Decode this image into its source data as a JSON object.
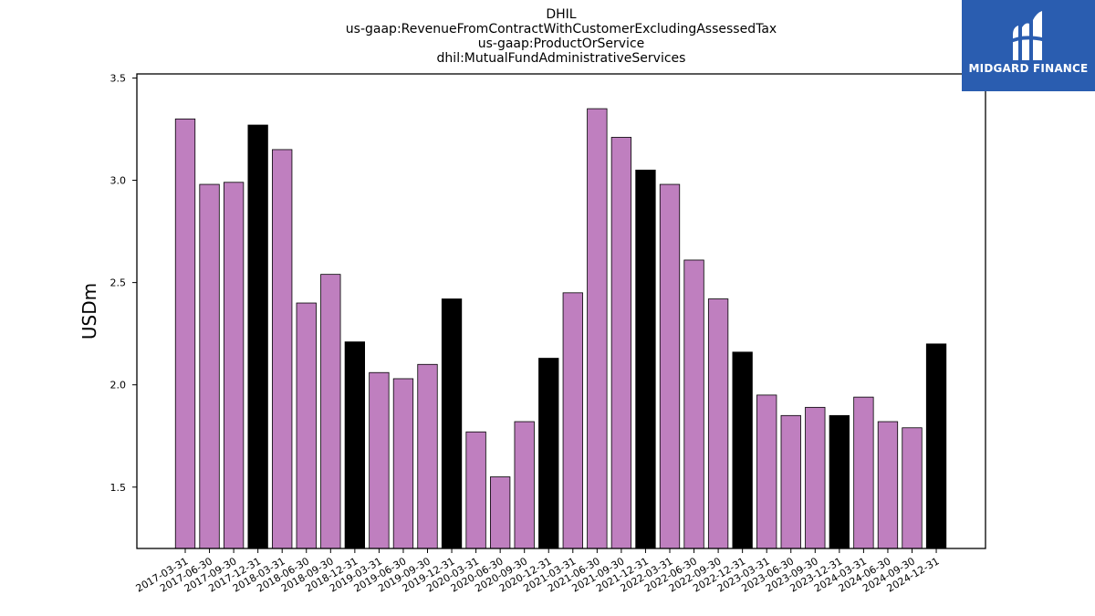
{
  "chart_data": {
    "type": "bar",
    "title_lines": [
      "DHIL",
      "us-gaap:RevenueFromContractWithCustomerExcludingAssessedTax",
      "us-gaap:ProductOrService",
      "dhil:MutualFundAdministrativeServices"
    ],
    "xlabel": "",
    "ylabel": "USDm",
    "ylim": [
      1.2,
      3.52
    ],
    "yticks": [
      1.5,
      2.0,
      2.5,
      3.0,
      3.5
    ],
    "ytick_labels": [
      "1.5",
      "2.0",
      "2.5",
      "3.0",
      "3.5"
    ],
    "grid": false,
    "colors": {
      "quarter": "#bf7fbf",
      "year_end": "#000000",
      "edge": "#000000"
    },
    "categories": [
      "2017-03-31",
      "2017-06-30",
      "2017-09-30",
      "2017-12-31",
      "2018-03-31",
      "2018-06-30",
      "2018-09-30",
      "2018-12-31",
      "2019-03-31",
      "2019-06-30",
      "2019-09-30",
      "2019-12-31",
      "2020-03-31",
      "2020-06-30",
      "2020-09-30",
      "2020-12-31",
      "2021-03-31",
      "2021-06-30",
      "2021-09-30",
      "2021-12-31",
      "2022-03-31",
      "2022-06-30",
      "2022-09-30",
      "2022-12-31",
      "2023-03-31",
      "2023-06-30",
      "2023-09-30",
      "2023-12-31",
      "2024-03-31",
      "2024-06-30",
      "2024-09-30",
      "2024-12-31"
    ],
    "values": [
      3.3,
      2.98,
      2.99,
      3.27,
      3.15,
      2.4,
      2.54,
      2.21,
      2.06,
      2.03,
      2.1,
      2.42,
      1.77,
      1.55,
      1.82,
      2.13,
      2.45,
      3.35,
      3.21,
      3.05,
      2.98,
      2.61,
      2.42,
      2.16,
      1.95,
      1.85,
      1.89,
      1.85,
      1.94,
      1.82,
      1.79,
      2.2
    ],
    "year_end": [
      false,
      false,
      false,
      true,
      false,
      false,
      false,
      true,
      false,
      false,
      false,
      true,
      false,
      false,
      false,
      true,
      false,
      false,
      false,
      true,
      false,
      false,
      false,
      true,
      false,
      false,
      false,
      true,
      false,
      false,
      false,
      true
    ]
  },
  "logo": {
    "text": "MIDGARD FINANCE",
    "background": "#2a5db0",
    "icon": "midgard-logo-icon"
  }
}
